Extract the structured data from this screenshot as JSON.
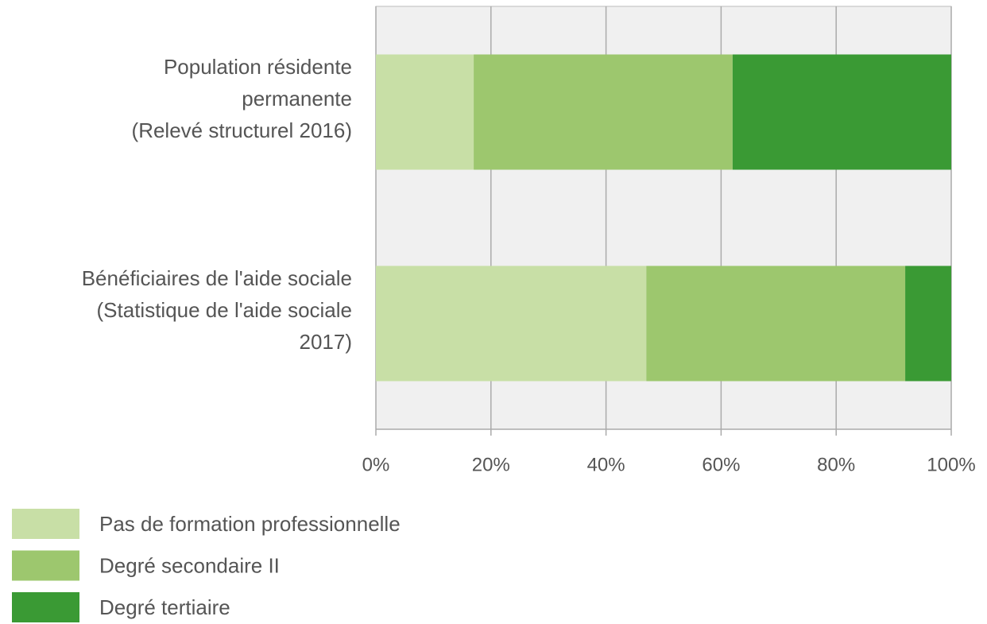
{
  "chart_data": {
    "type": "stacked_barh",
    "categories": [
      "Population résidente\npermanente\n(Relevé structurel 2016)",
      "Bénéficiaires de l'aide sociale\n(Statistique de l'aide sociale\n2017)"
    ],
    "series": [
      {
        "name": "Pas de formation professionnelle",
        "color": "#c8dfa6",
        "values": [
          17,
          47
        ]
      },
      {
        "name": "Degré secondaire II",
        "color": "#9dc76e",
        "values": [
          45,
          45
        ]
      },
      {
        "name": "Degré tertiaire",
        "color": "#3a9a34",
        "values": [
          38,
          8
        ]
      }
    ],
    "xlim": [
      0,
      100
    ],
    "xticks": [
      {
        "value": 0,
        "label": "0%"
      },
      {
        "value": 20,
        "label": "20%"
      },
      {
        "value": 40,
        "label": "40%"
      },
      {
        "value": 60,
        "label": "60%"
      },
      {
        "value": 80,
        "label": "80%"
      },
      {
        "value": 100,
        "label": "100%"
      }
    ],
    "grid": true,
    "legend": "bottom"
  }
}
